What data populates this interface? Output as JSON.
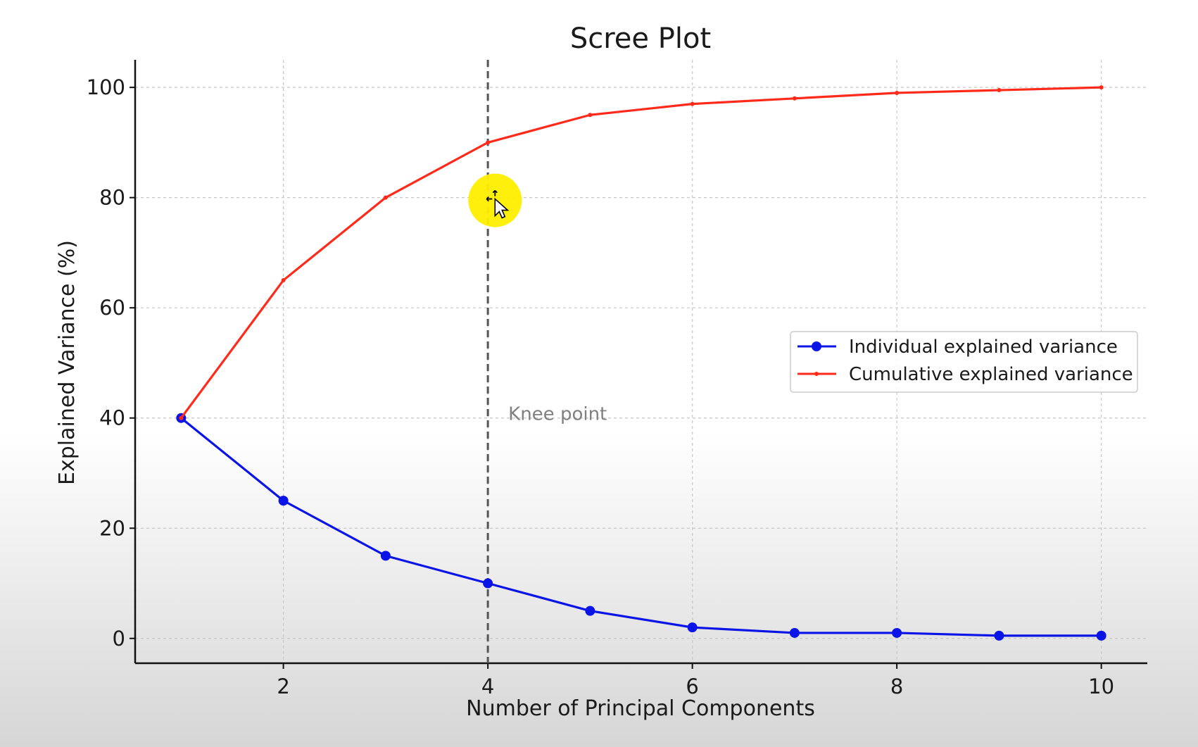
{
  "chart_data": {
    "type": "line",
    "title": "Scree Plot",
    "xlabel": "Number of Principal Components",
    "ylabel": "Explained Variance (%)",
    "x": [
      1,
      2,
      3,
      4,
      5,
      6,
      7,
      8,
      9,
      10
    ],
    "xlim": [
      0.55,
      10.45
    ],
    "ylim": [
      -4.5,
      105
    ],
    "xticks": [
      2,
      4,
      6,
      8,
      10
    ],
    "yticks": [
      0,
      20,
      40,
      60,
      80,
      100
    ],
    "grid": true,
    "legend_position": "center-right",
    "series": [
      {
        "name": "Individual explained variance",
        "color": "#0a14e6",
        "marker": "large-dot",
        "values": [
          40,
          25,
          15,
          10,
          5,
          2,
          1,
          1,
          0.5,
          0.5
        ]
      },
      {
        "name": "Cumulative explained variance",
        "color": "#ff2a1a",
        "marker": "small-dot",
        "values": [
          40,
          65,
          80,
          90,
          95,
          97,
          98,
          99,
          99.5,
          100
        ]
      }
    ],
    "annotations": [
      {
        "type": "vline",
        "x": 4,
        "style": "dashed",
        "color": "#555555"
      },
      {
        "type": "text",
        "text": "Knee point",
        "x": 4.2,
        "y": 40,
        "color": "#808080"
      }
    ]
  },
  "overlay": {
    "cursor_highlight": {
      "color": "#ffee00",
      "x": 4.07,
      "y": 79.5
    }
  }
}
